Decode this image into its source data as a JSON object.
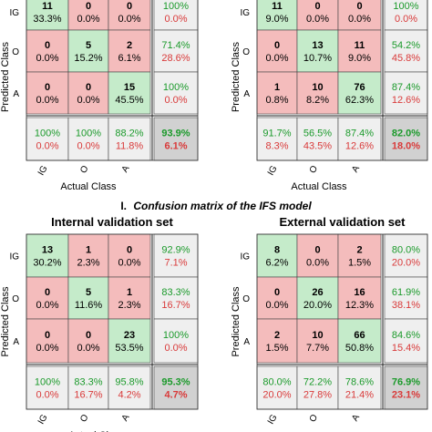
{
  "caption": {
    "prefix": "I.",
    "text": "Confusion matrix of the IFS model"
  },
  "colors": {
    "correct_bg": "#c5ebca",
    "wrong_bg": "#f4bcbc",
    "summary_bg": "#efefef",
    "total_bg": "#d1d1d1",
    "good_text": "#1b9a2b",
    "bad_text": "#d93a3a",
    "grid": "#444444"
  },
  "chart_data": [
    {
      "type": "table",
      "panel": "top-left",
      "title": "",
      "xlabel": "Actual Class",
      "ylabel": "Predicted Class",
      "class_labels": [
        "IG",
        "O",
        "A"
      ],
      "cells": [
        [
          {
            "count": "11",
            "pct": "33.3%"
          },
          {
            "count": "0",
            "pct": "0.0%"
          },
          {
            "count": "0",
            "pct": "0.0%"
          }
        ],
        [
          {
            "count": "0",
            "pct": "0.0%"
          },
          {
            "count": "5",
            "pct": "15.2%"
          },
          {
            "count": "2",
            "pct": "6.1%"
          }
        ],
        [
          {
            "count": "0",
            "pct": "0.0%"
          },
          {
            "count": "0",
            "pct": "0.0%"
          },
          {
            "count": "15",
            "pct": "45.5%"
          }
        ]
      ],
      "row_summary": [
        [
          "100%",
          "0.0%"
        ],
        [
          "71.4%",
          "28.6%"
        ],
        [
          "100%",
          "0.0%"
        ]
      ],
      "col_summary": [
        [
          "100%",
          "0.0%"
        ],
        [
          "100%",
          "0.0%"
        ],
        [
          "88.2%",
          "11.8%"
        ]
      ],
      "total": [
        "93.9%",
        "6.1%"
      ]
    },
    {
      "type": "table",
      "panel": "top-right",
      "title": "",
      "xlabel": "Actual Class",
      "ylabel": "Predicted Class",
      "class_labels": [
        "IG",
        "O",
        "A"
      ],
      "cells": [
        [
          {
            "count": "11",
            "pct": "9.0%"
          },
          {
            "count": "0",
            "pct": "0.0%"
          },
          {
            "count": "0",
            "pct": "0.0%"
          }
        ],
        [
          {
            "count": "0",
            "pct": "0.0%"
          },
          {
            "count": "13",
            "pct": "10.7%"
          },
          {
            "count": "11",
            "pct": "9.0%"
          }
        ],
        [
          {
            "count": "1",
            "pct": "0.8%"
          },
          {
            "count": "10",
            "pct": "8.2%"
          },
          {
            "count": "76",
            "pct": "62.3%"
          }
        ]
      ],
      "row_summary": [
        [
          "100%",
          "0.0%"
        ],
        [
          "54.2%",
          "45.8%"
        ],
        [
          "87.4%",
          "12.6%"
        ]
      ],
      "col_summary": [
        [
          "91.7%",
          "8.3%"
        ],
        [
          "56.5%",
          "43.5%"
        ],
        [
          "87.4%",
          "12.6%"
        ]
      ],
      "total": [
        "82.0%",
        "18.0%"
      ]
    },
    {
      "type": "table",
      "panel": "bottom-left",
      "title": "Internal validation set",
      "xlabel": "Actual Cl",
      "ylabel": "Predicted Class",
      "class_labels": [
        "IG",
        "O",
        "A"
      ],
      "cells": [
        [
          {
            "count": "13",
            "pct": "30.2%"
          },
          {
            "count": "1",
            "pct": "2.3%"
          },
          {
            "count": "0",
            "pct": "0.0%"
          }
        ],
        [
          {
            "count": "0",
            "pct": "0.0%"
          },
          {
            "count": "5",
            "pct": "11.6%"
          },
          {
            "count": "1",
            "pct": "2.3%"
          }
        ],
        [
          {
            "count": "0",
            "pct": "0.0%"
          },
          {
            "count": "0",
            "pct": "0.0%"
          },
          {
            "count": "23",
            "pct": "53.5%"
          }
        ]
      ],
      "row_summary": [
        [
          "92.9%",
          "7.1%"
        ],
        [
          "83.3%",
          "16.7%"
        ],
        [
          "100%",
          "0.0%"
        ]
      ],
      "col_summary": [
        [
          "100%",
          "0.0%"
        ],
        [
          "83.3%",
          "16.7%"
        ],
        [
          "95.8%",
          "4.2%"
        ]
      ],
      "total": [
        "95.3%",
        "4.7%"
      ]
    },
    {
      "type": "table",
      "panel": "bottom-right",
      "title": "External validation set",
      "xlabel": "",
      "ylabel": "Predicted Class",
      "class_labels": [
        "IG",
        "O",
        "A"
      ],
      "cells": [
        [
          {
            "count": "8",
            "pct": "6.2%"
          },
          {
            "count": "0",
            "pct": "0.0%"
          },
          {
            "count": "2",
            "pct": "1.5%"
          }
        ],
        [
          {
            "count": "0",
            "pct": "0.0%"
          },
          {
            "count": "26",
            "pct": "20.0%"
          },
          {
            "count": "16",
            "pct": "12.3%"
          }
        ],
        [
          {
            "count": "2",
            "pct": "1.5%"
          },
          {
            "count": "10",
            "pct": "7.7%"
          },
          {
            "count": "66",
            "pct": "50.8%"
          }
        ]
      ],
      "row_summary": [
        [
          "80.0%",
          "20.0%"
        ],
        [
          "61.9%",
          "38.1%"
        ],
        [
          "84.6%",
          "15.4%"
        ]
      ],
      "col_summary": [
        [
          "80.0%",
          "20.0%"
        ],
        [
          "72.2%",
          "27.8%"
        ],
        [
          "78.6%",
          "21.4%"
        ]
      ],
      "total": [
        "76.9%",
        "23.1%"
      ]
    }
  ]
}
